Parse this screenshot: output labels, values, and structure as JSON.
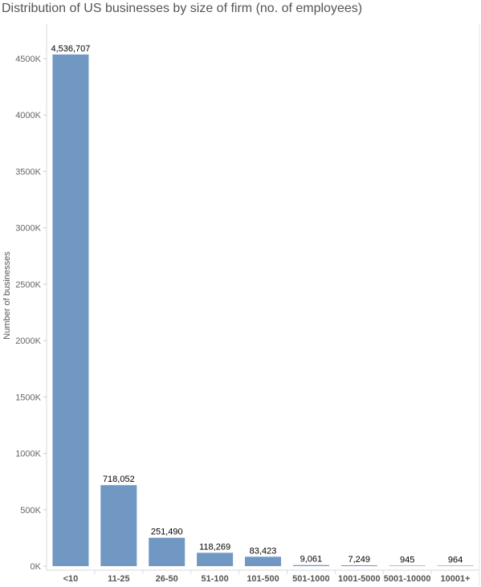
{
  "chart_data": {
    "type": "bar",
    "title": "Distribution of US businesses by size of firm (no. of employees)",
    "xlabel": "",
    "ylabel": "Number of businesses",
    "categories": [
      "<10",
      "11-25",
      "26-50",
      "51-100",
      "101-500",
      "501-1000",
      "1001-5000",
      "5001-10000",
      "10001+"
    ],
    "values": [
      4536707,
      718052,
      251490,
      118269,
      83423,
      9061,
      7249,
      945,
      964
    ],
    "data_labels": [
      "4,536,707",
      "718,052",
      "251,490",
      "118,269",
      "83,423",
      "9,061",
      "7,249",
      "945",
      "964"
    ],
    "ylim": [
      0,
      4500000
    ],
    "yticks": [
      0,
      500000,
      1000000,
      1500000,
      2000000,
      2500000,
      3000000,
      3500000,
      4000000,
      4500000
    ],
    "ytick_labels": [
      "0K",
      "500K",
      "1000K",
      "1500K",
      "2000K",
      "2500K",
      "3000K",
      "3500K",
      "4000K",
      "4500K"
    ],
    "grid": false,
    "bar_color": "#7098c2"
  }
}
